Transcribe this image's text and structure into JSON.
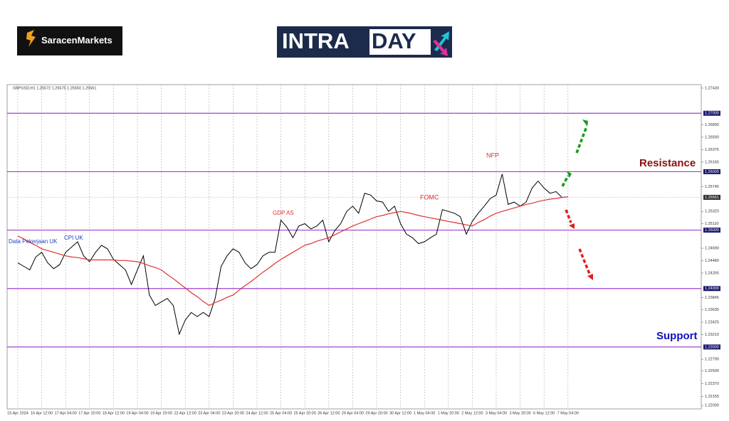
{
  "brand_left": "SaracenMarkets",
  "brand_right": {
    "part1": "INTRA",
    "part2": "DAY"
  },
  "chart_data": {
    "type": "line",
    "title": "GBPUSD,H1 1.25572 1.25575 1.25550 1.25561",
    "categories": [
      "15 Apr 2024",
      null,
      null,
      null,
      "16 Apr 12:00",
      null,
      null,
      null,
      "17 Apr 04:00",
      null,
      null,
      null,
      "17 Apr 20:00",
      null,
      null,
      null,
      "18 Apr 12:00",
      null,
      null,
      null,
      "19 Apr 04:00",
      null,
      null,
      null,
      "19 Apr 20:00",
      null,
      null,
      null,
      "22 Apr 12:00",
      null,
      null,
      null,
      "23 Apr 04:00",
      null,
      null,
      null,
      "23 Apr 20:00",
      null,
      null,
      null,
      "24 Apr 12:00",
      null,
      null,
      null,
      "25 Apr 04:00",
      null,
      null,
      null,
      "25 Apr 20:00",
      null,
      null,
      null,
      "26 Apr 12:00",
      null,
      null,
      null,
      "29 Apr 04:00",
      null,
      null,
      null,
      "29 Apr 20:00",
      null,
      null,
      null,
      "30 Apr 12:00",
      null,
      null,
      null,
      "1 May 04:00",
      null,
      null,
      null,
      "1 May 20:00",
      null,
      null,
      null,
      "2 May 12:00",
      null,
      null,
      null,
      "3 May 04:00",
      null,
      null,
      null,
      "3 May 20:00",
      null,
      null,
      null,
      "6 May 12:00",
      null,
      null,
      null,
      "7 May 04:00"
    ],
    "series": [
      {
        "name": "GBPUSD",
        "color": "#000000",
        "values": [
          1.2444,
          1.2438,
          1.2432,
          1.2454,
          1.2462,
          1.2444,
          1.2434,
          1.2441,
          1.2462,
          1.2471,
          1.248,
          1.2456,
          1.2446,
          1.2462,
          1.2474,
          1.2468,
          1.245,
          1.2441,
          1.2432,
          1.2407,
          1.2432,
          1.2456,
          1.2389,
          1.2371,
          1.2377,
          1.2383,
          1.2371,
          1.2322,
          1.2346,
          1.2359,
          1.2352,
          1.2359,
          1.2352,
          1.2383,
          1.2438,
          1.2456,
          1.2468,
          1.2462,
          1.2444,
          1.2434,
          1.2441,
          1.2456,
          1.2462,
          1.2462,
          1.2517,
          1.2505,
          1.2487,
          1.2507,
          1.2511,
          1.2502,
          1.2507,
          1.2517,
          1.248,
          1.2499,
          1.2511,
          1.2532,
          1.2541,
          1.2529,
          1.2563,
          1.256,
          1.255,
          1.2548,
          1.2532,
          1.2541,
          1.2511,
          1.2493,
          1.2487,
          1.2477,
          1.248,
          1.2487,
          1.2493,
          1.2535,
          1.2532,
          1.2529,
          1.2523,
          1.2493,
          1.2515,
          1.2529,
          1.2541,
          1.2554,
          1.256,
          1.2596,
          1.2544,
          1.2548,
          1.2541,
          1.2548,
          1.2572,
          1.2584,
          1.2572,
          1.2563,
          1.2566,
          1.2556,
          1.2557
        ]
      },
      {
        "name": "MA",
        "color": "#e03030",
        "values": [
          1.249,
          1.2485,
          1.2479,
          1.2474,
          1.2468,
          1.2465,
          1.2462,
          1.2459,
          1.2456,
          1.2454,
          1.2453,
          1.2451,
          1.2449,
          1.2449,
          1.2449,
          1.2449,
          1.2449,
          1.2448,
          1.2448,
          1.2447,
          1.2446,
          1.2443,
          1.2439,
          1.2436,
          1.2432,
          1.2424,
          1.2417,
          1.2409,
          1.2401,
          1.2393,
          1.2386,
          1.2378,
          1.2371,
          1.2376,
          1.238,
          1.2385,
          1.2389,
          1.2397,
          1.2405,
          1.2412,
          1.242,
          1.2428,
          1.2435,
          1.2443,
          1.245,
          1.2456,
          1.2462,
          1.2468,
          1.2474,
          1.2477,
          1.2481,
          1.2484,
          1.2487,
          1.2492,
          1.2497,
          1.2502,
          1.2507,
          1.2511,
          1.2515,
          1.2519,
          1.2523,
          1.2525,
          1.2528,
          1.253,
          1.2532,
          1.253,
          1.2528,
          1.2525,
          1.2523,
          1.2521,
          1.2519,
          1.2517,
          1.2515,
          1.2513,
          1.2511,
          1.2509,
          1.2507,
          1.2513,
          1.2518,
          1.2524,
          1.2529,
          1.2532,
          1.2535,
          1.2538,
          1.2541,
          1.2544,
          1.2546,
          1.2549,
          1.2551,
          1.2553,
          1.2554,
          1.2556,
          1.2557
        ]
      }
    ],
    "ylim": [
      1.2194,
      1.2749
    ],
    "yticks": [
      {
        "value": 1.2743,
        "label": "1.27430"
      },
      {
        "value": 1.268,
        "label": "1.26800"
      },
      {
        "value": 1.2659,
        "label": "1.26590"
      },
      1.26375,
      1.26165,
      1.25745,
      {
        "value": 1.2532,
        "label": "1.25320"
      },
      {
        "value": 1.2511,
        "label": "1.25110"
      },
      {
        "value": 1.2469,
        "label": "1.24690"
      },
      {
        "value": 1.2448,
        "label": "1.24480"
      },
      1.24265,
      1.23845,
      1.23635,
      1.23425,
      {
        "value": 1.2321,
        "label": "1.23210"
      },
      {
        "value": 1.2279,
        "label": "1.22790"
      },
      {
        "value": 1.2259,
        "label": "1.22590"
      },
      {
        "value": 1.2237,
        "label": "1.22370"
      },
      1.22155,
      {
        "value": 1.22,
        "label": "1.22000"
      }
    ],
    "levels": [
      {
        "value": 1.27,
        "label": "1.27000"
      },
      {
        "value": 1.26,
        "label": "1.26000"
      },
      {
        "value": 1.25,
        "label": "1.25000"
      },
      {
        "value": 1.24,
        "label": "1.24000"
      },
      {
        "value": 1.23,
        "label": "1.23000"
      }
    ],
    "level_color": "#a040d0",
    "last_price": 1.25561,
    "grid": true,
    "annotations": {
      "uk_jobs": "Data Pekerjaan UK",
      "cpi": "CPI UK",
      "gdp": "GDP AS",
      "fomc": "FOMC",
      "nfp": "NFP",
      "resistance": "Resistance",
      "support": "Support"
    }
  }
}
